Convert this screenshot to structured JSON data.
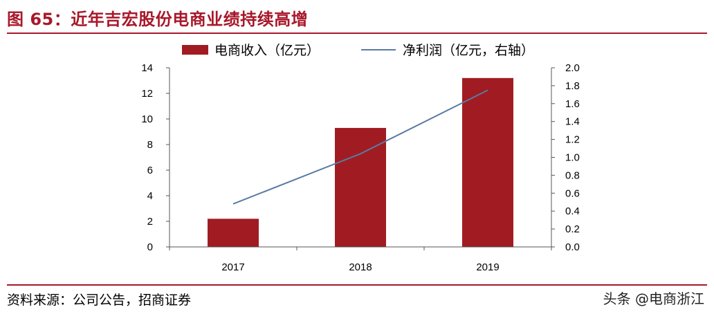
{
  "figure": {
    "title": "图 65：近年吉宏股份电商业绩持续高增",
    "source": "资料来源：公司公告，招商证券",
    "watermark": "头条 @电商浙江",
    "colors": {
      "accent": "#a8182a",
      "bar": "#a01c22",
      "line": "#5a7aa3"
    }
  },
  "chart_data": {
    "type": "bar",
    "title": "",
    "categories": [
      "2017",
      "2018",
      "2019"
    ],
    "series": [
      {
        "name": "电商收入（亿元）",
        "type": "bar",
        "axis": "left",
        "values": [
          2.2,
          9.3,
          13.2
        ]
      },
      {
        "name": "净利润（亿元，右轴）",
        "type": "line",
        "axis": "right",
        "values": [
          0.48,
          1.04,
          1.75
        ]
      }
    ],
    "yleft": {
      "ylim": [
        0,
        14
      ],
      "ticks": [
        "0",
        "2",
        "4",
        "6",
        "8",
        "10",
        "12",
        "14"
      ]
    },
    "yright": {
      "ylim": [
        0,
        2.0
      ],
      "ticks": [
        "0.0",
        "0.2",
        "0.4",
        "0.6",
        "0.8",
        "1.0",
        "1.2",
        "1.4",
        "1.6",
        "1.8",
        "2.0"
      ]
    },
    "grid": false,
    "legend": "top"
  }
}
